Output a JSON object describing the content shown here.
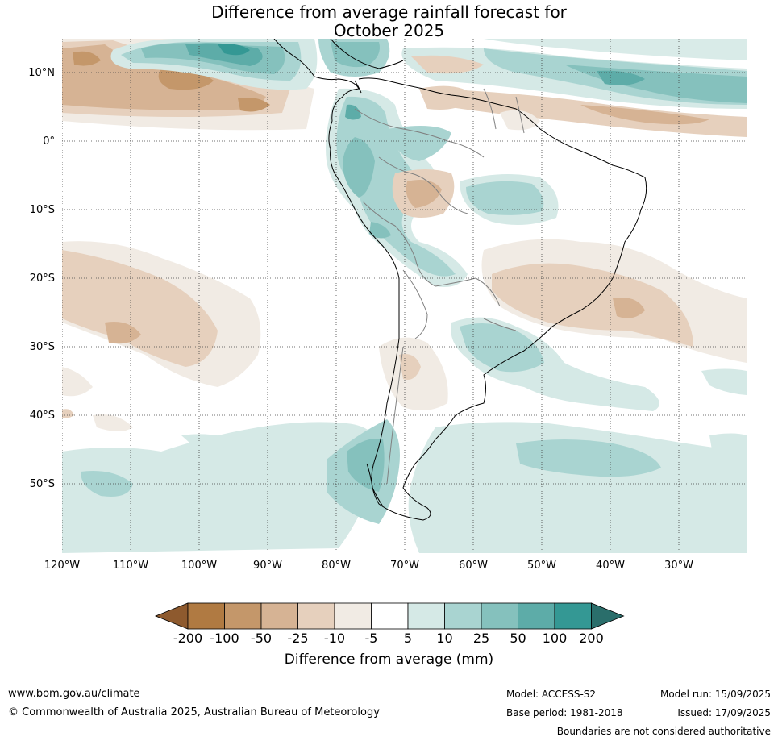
{
  "title": {
    "line1": "Difference from average rainfall forecast for",
    "line2": "October 2025"
  },
  "map": {
    "lat_labels": [
      "10°N",
      "0°",
      "10°S",
      "20°S",
      "30°S",
      "40°S",
      "50°S"
    ],
    "lon_labels": [
      "120°W",
      "110°W",
      "100°W",
      "90°W",
      "80°W",
      "70°W",
      "60°W",
      "50°W",
      "40°W",
      "30°W"
    ]
  },
  "colorbar": {
    "ticks": [
      "-200",
      "-100",
      "-50",
      "-25",
      "-10",
      "-5",
      "5",
      "10",
      "25",
      "50",
      "100",
      "200"
    ],
    "colors": [
      "#8e5a2e",
      "#b07a42",
      "#c4976a",
      "#d6b394",
      "#e6d0bd",
      "#f1ebe4",
      "#ffffff",
      "#d5e9e6",
      "#a9d4d1",
      "#85c1bd",
      "#5daca8",
      "#349894",
      "#2a6e6b"
    ],
    "label": "Difference from average (mm)"
  },
  "footer": {
    "website": "www.bom.gov.au/climate",
    "copyright": "© Commonwealth of Australia 2025, Australian Bureau of Meteorology",
    "model": "Model: ACCESS-S2",
    "base_period": "Base period: 1981-2018",
    "model_run": "Model run: 15/09/2025",
    "issued": "Issued: 17/09/2025",
    "disclaimer": "Boundaries are not considered authoritative"
  }
}
